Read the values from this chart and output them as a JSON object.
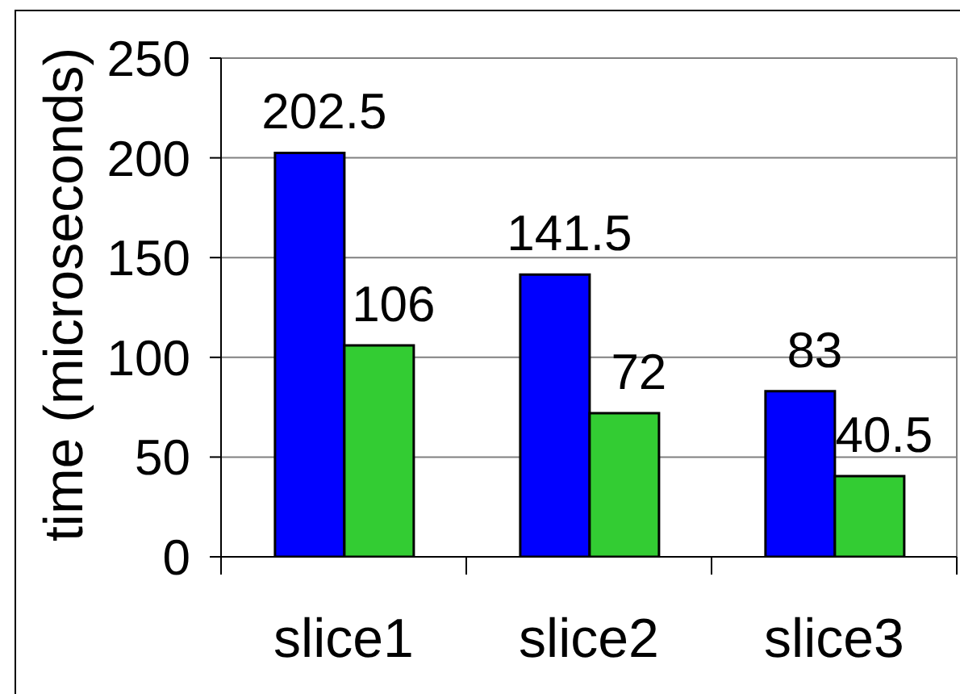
{
  "chart_data": {
    "type": "bar",
    "categories": [
      "slice1",
      "slice2",
      "slice3"
    ],
    "series": [
      {
        "color": "#0000ff",
        "values": [
          202.5,
          141.5,
          83
        ]
      },
      {
        "color": "#33cc33",
        "values": [
          106,
          72,
          40.5
        ]
      }
    ],
    "ylabel": "time (microseconds)",
    "ylim": [
      0,
      250
    ],
    "yticks": [
      0,
      50,
      100,
      150,
      200,
      250
    ],
    "grid": "y",
    "data_labels": true
  }
}
